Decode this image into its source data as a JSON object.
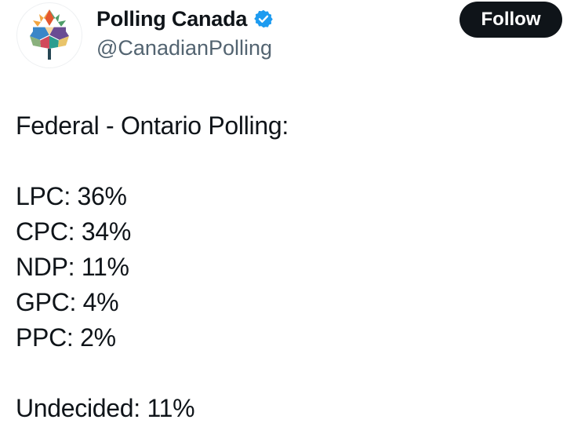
{
  "account": {
    "display_name": "Polling Canada",
    "handle": "@CanadianPolling",
    "verified": true,
    "verified_color": "#1d9bf0",
    "avatar_icon": "maple-leaf-quilt-logo"
  },
  "actions": {
    "follow_label": "Follow"
  },
  "post": {
    "heading": "Federal - Ontario Polling:",
    "results": [
      "LPC: 36%",
      "CPC: 34%",
      "NDP: 11%",
      "GPC: 4%",
      "PPC: 2%"
    ],
    "undecided": "Undecided: 11%"
  },
  "colors": {
    "text": "#0f1419",
    "secondary_text": "#536471",
    "button_bg": "#0f1419",
    "button_text": "#ffffff"
  }
}
